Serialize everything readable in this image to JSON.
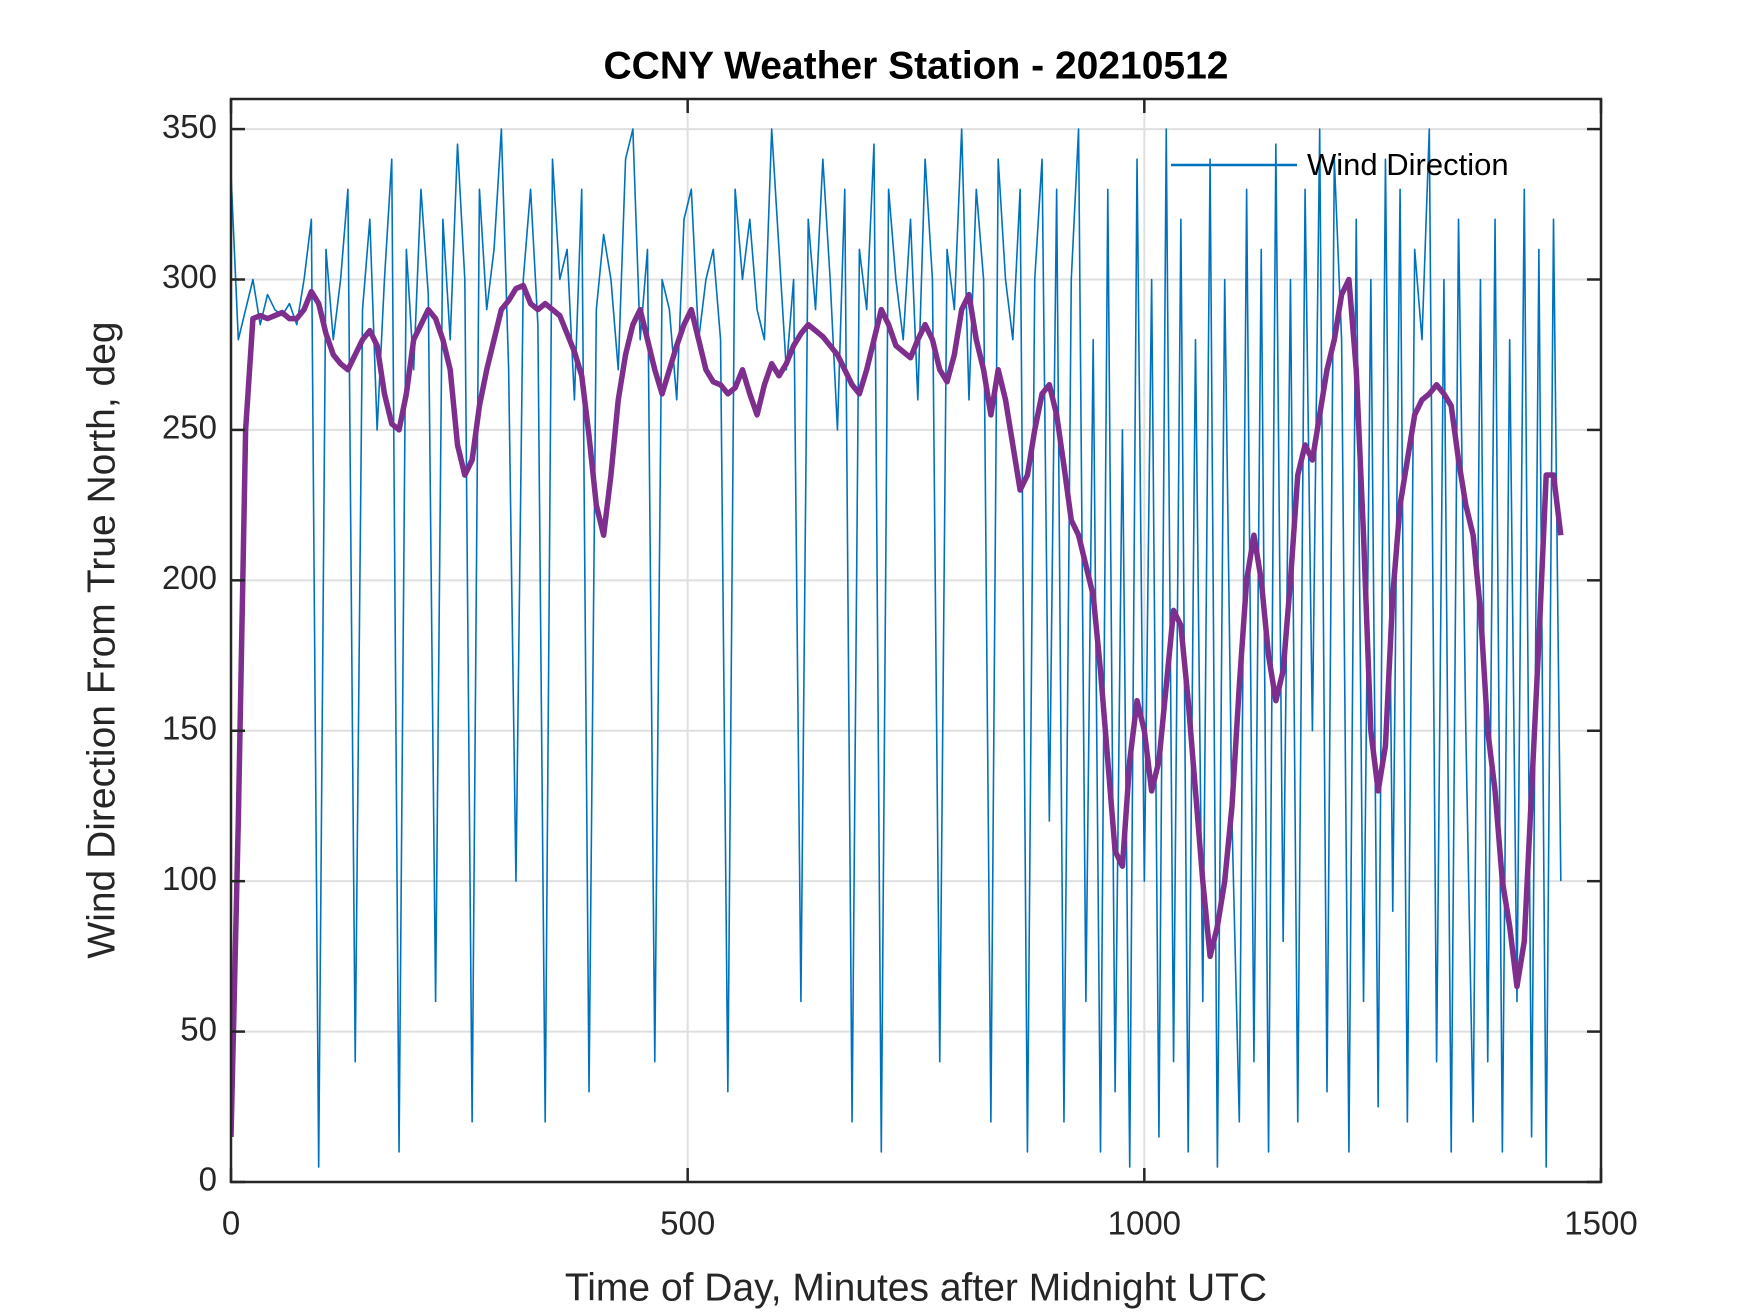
{
  "chart_data": {
    "type": "line",
    "title": "CCNY Weather Station - 20210512",
    "x_label": "Time of Day, Minutes after Midnight UTC",
    "y_label": "Wind Direction From True North, deg",
    "xlim": [
      0,
      1500
    ],
    "xticks": [
      0,
      500,
      1000,
      1500
    ],
    "ylim": [
      0,
      360
    ],
    "yticks": [
      0,
      50,
      100,
      150,
      200,
      250,
      300,
      350
    ],
    "grid": true,
    "legend": "top-right",
    "x": [
      0,
      8,
      16,
      24,
      32,
      40,
      48,
      56,
      64,
      72,
      80,
      88,
      96,
      104,
      112,
      120,
      128,
      136,
      144,
      152,
      160,
      168,
      176,
      184,
      192,
      200,
      208,
      216,
      224,
      232,
      240,
      248,
      256,
      264,
      272,
      280,
      288,
      296,
      304,
      312,
      320,
      328,
      336,
      344,
      352,
      360,
      368,
      376,
      384,
      392,
      400,
      408,
      416,
      424,
      432,
      440,
      448,
      456,
      464,
      472,
      480,
      488,
      496,
      504,
      512,
      520,
      528,
      536,
      544,
      552,
      560,
      568,
      576,
      584,
      592,
      600,
      608,
      616,
      624,
      632,
      640,
      648,
      656,
      664,
      672,
      680,
      688,
      696,
      704,
      712,
      720,
      728,
      736,
      744,
      752,
      760,
      768,
      776,
      784,
      792,
      800,
      808,
      816,
      824,
      832,
      840,
      848,
      856,
      864,
      872,
      880,
      888,
      896,
      904,
      912,
      920,
      928,
      936,
      944,
      952,
      960,
      968,
      976,
      984,
      992,
      1000,
      1008,
      1016,
      1024,
      1032,
      1040,
      1048,
      1056,
      1064,
      1072,
      1080,
      1088,
      1096,
      1104,
      1112,
      1120,
      1128,
      1136,
      1144,
      1152,
      1160,
      1168,
      1176,
      1184,
      1192,
      1200,
      1208,
      1216,
      1224,
      1232,
      1240,
      1248,
      1256,
      1264,
      1272,
      1280,
      1288,
      1296,
      1304,
      1312,
      1320,
      1328,
      1336,
      1344,
      1352,
      1360,
      1368,
      1376,
      1384,
      1392,
      1400,
      1408,
      1416,
      1424,
      1432,
      1440,
      1448,
      1456
    ],
    "series": [
      {
        "name": "Wind Direction",
        "color": "#0072BD",
        "width": 1.6,
        "values": [
          335,
          280,
          290,
          300,
          285,
          295,
          290,
          288,
          292,
          285,
          300,
          320,
          5,
          310,
          280,
          300,
          330,
          40,
          290,
          320,
          250,
          300,
          340,
          10,
          310,
          270,
          330,
          295,
          60,
          320,
          280,
          345,
          300,
          20,
          330,
          290,
          310,
          350,
          270,
          100,
          300,
          330,
          285,
          20,
          340,
          300,
          310,
          260,
          330,
          30,
          290,
          315,
          300,
          270,
          340,
          350,
          280,
          310,
          40,
          300,
          290,
          260,
          320,
          330,
          280,
          300,
          310,
          280,
          30,
          330,
          300,
          320,
          290,
          280,
          350,
          310,
          270,
          300,
          60,
          320,
          290,
          340,
          300,
          250,
          330,
          20,
          310,
          290,
          345,
          10,
          330,
          300,
          280,
          320,
          260,
          340,
          300,
          40,
          310,
          290,
          350,
          260,
          330,
          300,
          20,
          340,
          300,
          280,
          330,
          10,
          300,
          340,
          120,
          330,
          20,
          300,
          350,
          60,
          280,
          10,
          330,
          30,
          250,
          5,
          340,
          100,
          300,
          15,
          350,
          40,
          320,
          10,
          280,
          60,
          340,
          5,
          300,
          120,
          20,
          330,
          40,
          310,
          10,
          345,
          80,
          300,
          20,
          330,
          150,
          350,
          30,
          340,
          280,
          10,
          320,
          60,
          300,
          25,
          340,
          90,
          330,
          20,
          310,
          280,
          350,
          40,
          300,
          10,
          320,
          150,
          20,
          300,
          40,
          320,
          10,
          280,
          60,
          330,
          15,
          310,
          5,
          320,
          100
        ]
      },
      {
        "color": "#7E2F8E",
        "width": 5.5,
        "values": [
          15,
          120,
          250,
          287,
          288,
          287,
          288,
          289,
          287,
          287,
          290,
          296,
          292,
          282,
          275,
          272,
          270,
          275,
          280,
          283,
          278,
          262,
          252,
          250,
          262,
          280,
          285,
          290,
          287,
          280,
          270,
          245,
          235,
          240,
          258,
          270,
          280,
          290,
          293,
          297,
          298,
          292,
          290,
          292,
          290,
          288,
          282,
          276,
          268,
          248,
          225,
          215,
          235,
          260,
          275,
          285,
          290,
          280,
          270,
          262,
          270,
          278,
          285,
          290,
          280,
          270,
          266,
          265,
          262,
          264,
          270,
          262,
          255,
          265,
          272,
          268,
          272,
          278,
          282,
          285,
          283,
          281,
          278,
          275,
          270,
          265,
          262,
          270,
          280,
          290,
          285,
          278,
          276,
          274,
          280,
          285,
          280,
          270,
          266,
          275,
          290,
          295,
          280,
          270,
          255,
          270,
          260,
          245,
          230,
          235,
          250,
          262,
          265,
          255,
          238,
          220,
          215,
          205,
          195,
          170,
          140,
          110,
          105,
          140,
          160,
          150,
          130,
          140,
          165,
          190,
          185,
          160,
          130,
          100,
          75,
          85,
          100,
          125,
          165,
          200,
          215,
          200,
          175,
          160,
          170,
          200,
          235,
          245,
          240,
          255,
          270,
          280,
          295,
          300,
          270,
          215,
          150,
          130,
          145,
          195,
          225,
          240,
          255,
          260,
          262,
          265,
          262,
          258,
          240,
          225,
          215,
          190,
          150,
          130,
          100,
          85,
          65,
          80,
          130,
          180,
          235,
          235,
          215
        ]
      }
    ]
  }
}
